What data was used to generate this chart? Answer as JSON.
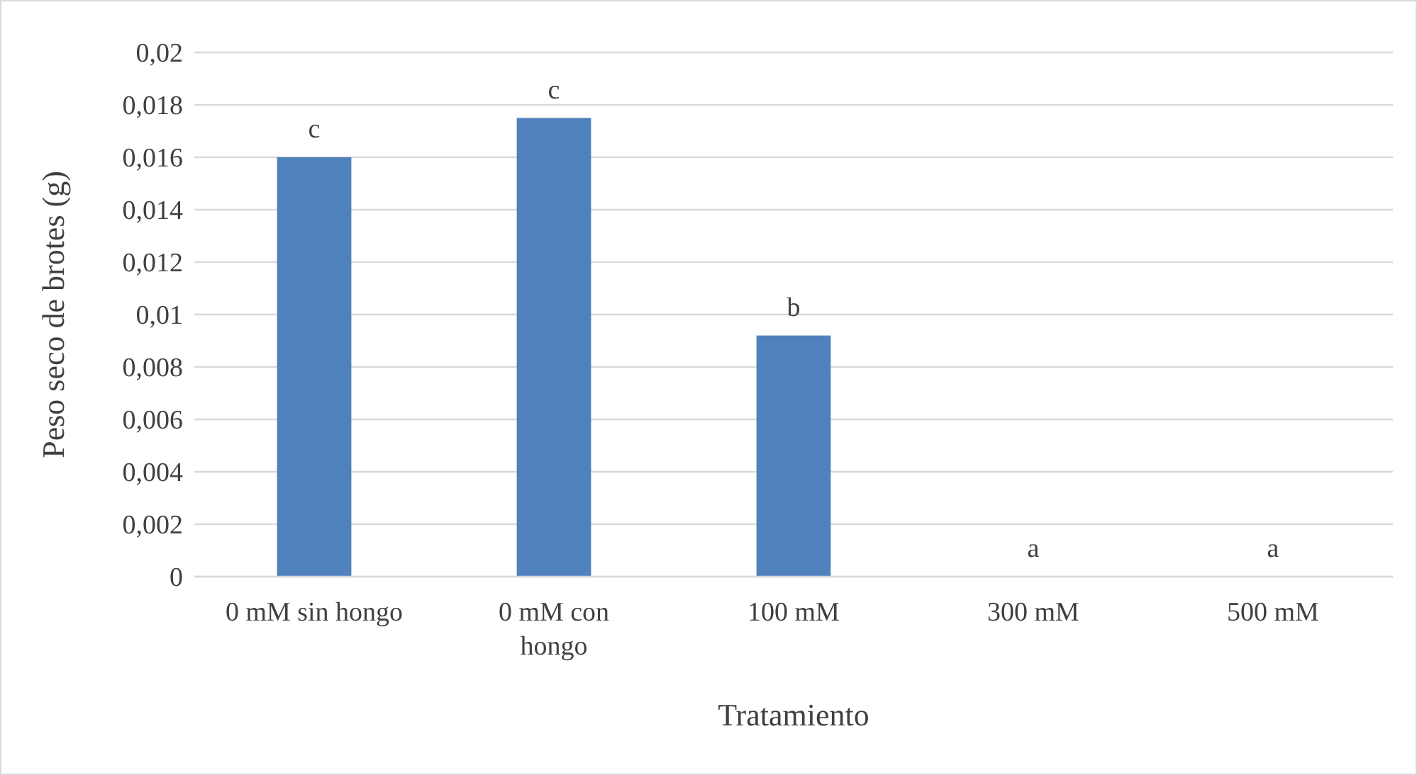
{
  "chart_data": {
    "type": "bar",
    "xlabel": "Tratamiento",
    "ylabel": "Peso seco de brotes (g)",
    "categories": [
      "0 mM sin hongo",
      "0 mM con hongo",
      "100 mM",
      "300 mM",
      "500 mM"
    ],
    "values": [
      0.016,
      0.0175,
      0.0092,
      0,
      0
    ],
    "color": "#4f81bd",
    "ylim": [
      0,
      0.02
    ],
    "yticks": [
      {
        "value": 0,
        "label": "0"
      },
      {
        "value": 0.002,
        "label": "0,002"
      },
      {
        "value": 0.004,
        "label": "0,004"
      },
      {
        "value": 0.006,
        "label": "0,006"
      },
      {
        "value": 0.008,
        "label": "0,008"
      },
      {
        "value": 0.01,
        "label": "0,01"
      },
      {
        "value": 0.012,
        "label": "0,012"
      },
      {
        "value": 0.014,
        "label": "0,014"
      },
      {
        "value": 0.016,
        "label": "0,016"
      },
      {
        "value": 0.018,
        "label": "0,018"
      },
      {
        "value": 0.02,
        "label": "0,02"
      }
    ],
    "grid": "y",
    "annotations": [
      "c",
      "c",
      "b",
      "a",
      "a"
    ]
  }
}
